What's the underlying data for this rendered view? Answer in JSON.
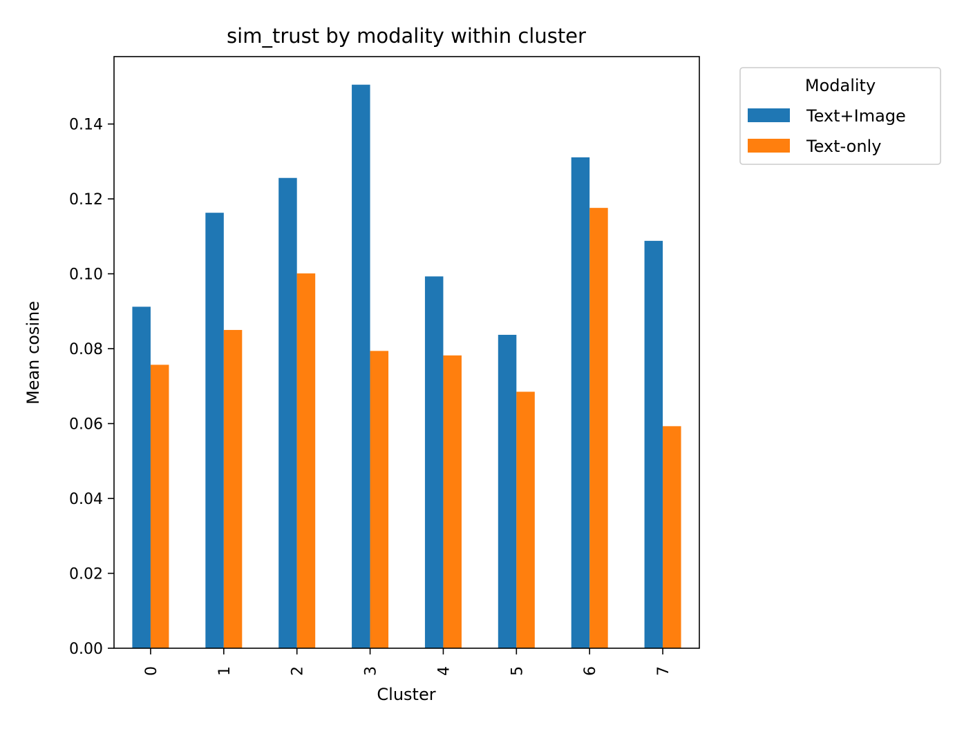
{
  "chart_data": {
    "type": "bar",
    "title": "sim_trust by modality within cluster",
    "xlabel": "Cluster",
    "ylabel": "Mean cosine",
    "categories": [
      "0",
      "1",
      "2",
      "3",
      "4",
      "5",
      "6",
      "7"
    ],
    "series": [
      {
        "name": "Text+Image",
        "color": "#1f77b4",
        "values": [
          0.0912,
          0.1163,
          0.1256,
          0.1505,
          0.0993,
          0.0837,
          0.1311,
          0.1088
        ]
      },
      {
        "name": "Text-only",
        "color": "#ff7f0e",
        "values": [
          0.0757,
          0.085,
          0.1001,
          0.0794,
          0.0782,
          0.0685,
          0.1176,
          0.0593
        ]
      }
    ],
    "ylim": [
      0,
      0.158
    ],
    "yticks": [
      "0.00",
      "0.02",
      "0.04",
      "0.06",
      "0.08",
      "0.10",
      "0.12",
      "0.14"
    ],
    "grid": false,
    "legend": {
      "title": "Modality",
      "placement": "outside-top-right"
    }
  }
}
